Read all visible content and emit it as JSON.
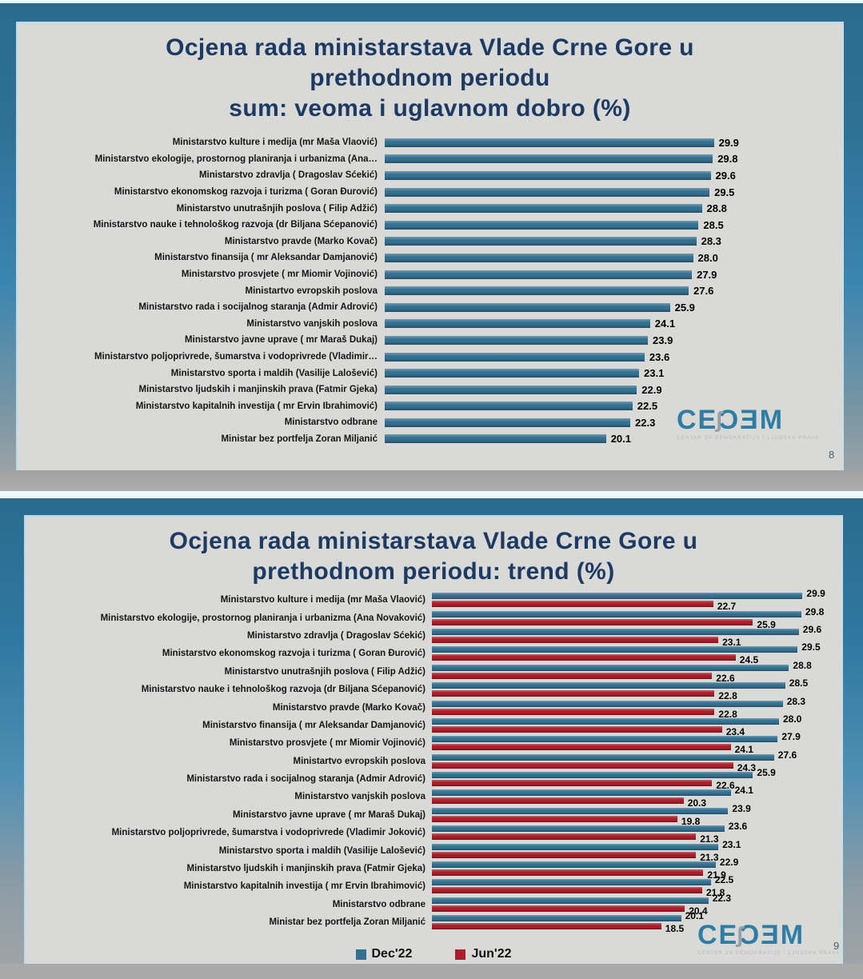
{
  "colors": {
    "bar_blue": "#34708F",
    "bar_red": "#AA1F2B",
    "title_navy": "#1D3A63",
    "frame_teal": "#2B6D92",
    "slide_bg": "#D9D9D7",
    "band_gray": "#A9A9A9",
    "logo_teal": "#2E7DA4"
  },
  "slide1": {
    "title_lines": [
      "Ocjena rada ministarstava Vlade Crne Gore u",
      "prethodnom periodu",
      "sum: veoma i uglavnom dobro (%)"
    ],
    "page_number": "8"
  },
  "slide2": {
    "title_lines": [
      "Ocjena rada ministarstava Vlade Crne Gore u",
      "prethodnom periodu: trend (%)"
    ],
    "page_number": "9"
  },
  "logo": {
    "prefix": "CE",
    "swoosh": "ʃ",
    "suffix": "ƆƎM",
    "tagline": "CENTAR ZA DEMOKRATIJU I LJUDSKA PRAVA"
  },
  "chart_data": [
    {
      "type": "bar",
      "orientation": "horizontal",
      "title": "Ocjena rada ministarstava Vlade Crne Gore u prethodnom periodu sum: veoma i uglavnom dobro (%)",
      "categories": [
        "Ministarstvo kulture i medija (mr Maša Vlaović)",
        "Ministarstvo ekologije, prostornog planiranja i urbanizma (Ana…",
        "Ministarstvo zdravlja ( Dragoslav Šćekić)",
        "Ministarstvo ekonomskog razvoja i turizma ( Goran Đurović)",
        "Ministarstvo unutrašnjih poslova ( Filip Adžić)",
        "Ministarstvo nauke i tehnološkog razvoja (dr Biljana Šćepanović)",
        "Ministarstvo pravde (Marko Kovač)",
        "Ministarstvo finansija ( mr Aleksandar Damjanović)",
        "Ministarstvo prosvjete ( mr Miomir Vojinović)",
        "Ministartvo evropskih poslova",
        "Ministarstvo rada i socijalnog staranja (Admir Adrović)",
        "Ministarstvo vanjskih poslova",
        "Ministarstvo javne uprave ( mr Maraš Dukaj)",
        "Ministarstvo poljoprivrede, šumarstva i vodoprivrede (Vladimir…",
        "Ministarstvo sporta i maldih (Vasilije Lalošević)",
        "Ministarstvo ljudskih i manjinskih prava (Fatmir Gjeka)",
        "Ministarstvo kapitalnih investija ( mr Ervin Ibrahimović)",
        "Ministarstvo odbrane",
        "Ministar bez portfelja Zoran Miljanić"
      ],
      "values": [
        29.9,
        29.8,
        29.6,
        29.5,
        28.8,
        28.5,
        28.3,
        28.0,
        27.9,
        27.6,
        25.9,
        24.1,
        23.9,
        23.6,
        23.1,
        22.9,
        22.5,
        22.3,
        20.1
      ],
      "xlim": [
        0,
        30
      ],
      "data_labels": true,
      "grid": false,
      "bar_color": "#34708F"
    },
    {
      "type": "bar",
      "orientation": "horizontal",
      "title": "Ocjena rada ministarstava Vlade Crne Gore u prethodnom periodu: trend (%)",
      "categories": [
        "Ministarstvo kulture i medija (mr Maša Vlaović)",
        "Ministarstvo ekologije, prostornog planiranja i urbanizma (Ana Novaković)",
        "Ministarstvo zdravlja ( Dragoslav Šćekić)",
        "Ministarstvo ekonomskog razvoja i turizma ( Goran Đurović)",
        "Ministarstvo unutrašnjih poslova ( Filip Adžić)",
        "Ministarstvo nauke i tehnološkog razvoja (dr Biljana Šćepanović)",
        "Ministarstvo pravde (Marko Kovač)",
        "Ministarstvo finansija ( mr Aleksandar Damjanović)",
        "Ministarstvo prosvjete ( mr Miomir Vojinović)",
        "Ministartvo evropskih poslova",
        "Ministarstvo rada i socijalnog staranja (Admir Adrović)",
        "Ministarstvo vanjskih poslova",
        "Ministarstvo javne uprave ( mr Maraš Dukaj)",
        "Ministarstvo poljoprivrede, šumarstva i vodoprivrede (Vladimir Joković)",
        "Ministarstvo sporta i maldih (Vasilije Lalošević)",
        "Ministarstvo ljudskih i manjinskih prava (Fatmir Gjeka)",
        "Ministarstvo kapitalnih investija ( mr Ervin Ibrahimović)",
        "Ministarstvo odbrane",
        "Ministar bez portfelja Zoran Miljanić"
      ],
      "series": [
        {
          "name": "Dec'22",
          "color": "#34708F",
          "values": [
            29.9,
            29.8,
            29.6,
            29.5,
            28.8,
            28.5,
            28.3,
            28.0,
            27.9,
            27.6,
            25.9,
            24.1,
            23.9,
            23.6,
            23.1,
            22.9,
            22.5,
            22.3,
            20.1
          ]
        },
        {
          "name": "Jun'22",
          "color": "#AA1F2B",
          "values": [
            22.7,
            25.9,
            23.1,
            24.5,
            22.6,
            22.8,
            22.8,
            23.4,
            24.1,
            24.3,
            22.6,
            20.3,
            19.8,
            21.3,
            21.3,
            21.9,
            21.8,
            20.4,
            18.5
          ]
        }
      ],
      "xlim": [
        0,
        30
      ],
      "legend_position": "bottom",
      "data_labels": true,
      "grid": false
    }
  ]
}
